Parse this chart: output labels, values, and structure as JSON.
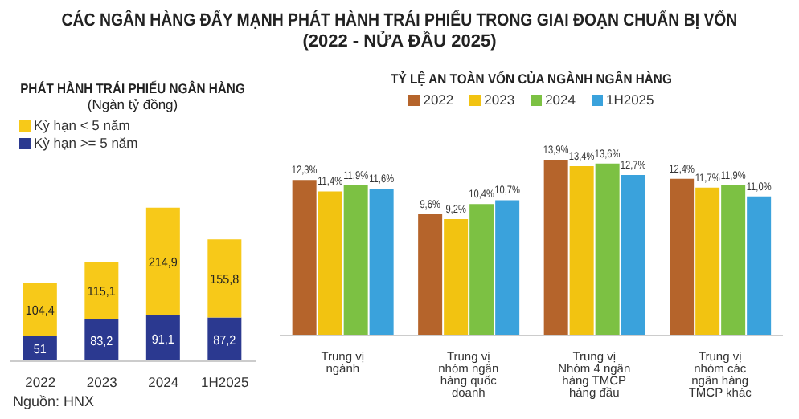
{
  "chart_data": [
    {
      "type": "other",
      "title": "CÁC NGÂN HÀNG ĐẨY MẠNH PHÁT HÀNH TRÁI PHIẾU TRONG GIAI ĐOẠN CHUẨN BỊ VỐN",
      "subtitle": "(2022 - NỬA ĐẦU 2025)"
    },
    {
      "type": "bar",
      "title": "PHÁT HÀNH TRÁI PHIẾU NGÂN HÀNG",
      "subtitle": "(Ngàn tỷ đồng)",
      "categories": [
        "2022",
        "2023",
        "2024",
        "1H2025"
      ],
      "stacked": true,
      "legend": "top left",
      "annotations": [
        "Nguồn: HNX"
      ],
      "series": [
        {
          "name": "Kỳ hạn >= 5 năm",
          "color": "#2b3990",
          "values": [
            51,
            83.2,
            91.1,
            87.2
          ],
          "value_labels": [
            "51",
            "83,2",
            "91,1",
            "87,2"
          ]
        },
        {
          "name": "Kỳ hạn < 5 năm",
          "color": "#f7c919",
          "values": [
            104.4,
            115.1,
            214.9,
            155.8
          ],
          "value_labels": [
            "104,4",
            "115,1",
            "214,9",
            "155,8"
          ]
        }
      ]
    },
    {
      "type": "bar",
      "title": "TỶ LỆ AN TOÀN VỐN CỦA NGÀNH NGÂN HÀNG",
      "categories": [
        "Trung vị ngành",
        "Trung vị nhóm ngân hàng quốc doanh",
        "Trung vị Nhóm 4 ngân hàng TMCP hàng đầu",
        "Trung vị nhóm các ngân hàng TMCP khác"
      ],
      "legend": "top",
      "series": [
        {
          "name": "2022",
          "color": "#b5642b",
          "values": [
            12.3,
            9.6,
            13.9,
            12.4
          ],
          "value_labels": [
            "12,3%",
            "9,6%",
            "13,9%",
            "12,4%"
          ]
        },
        {
          "name": "2023",
          "color": "#f2c311",
          "values": [
            11.4,
            9.2,
            13.4,
            11.7
          ],
          "value_labels": [
            "11,4%",
            "9,2%",
            "13,4%",
            "11,7%"
          ]
        },
        {
          "name": "2024",
          "color": "#7cc143",
          "values": [
            11.9,
            10.4,
            13.6,
            11.9
          ],
          "value_labels": [
            "11,9%",
            "10,4%",
            "13,6%",
            "11,9%"
          ]
        },
        {
          "name": "1H2025",
          "color": "#3aa2dc",
          "values": [
            11.6,
            10.7,
            12.7,
            11.0
          ],
          "value_labels": [
            "11,6%",
            "10,7%",
            "12,7%",
            "11,0%"
          ]
        }
      ]
    }
  ]
}
